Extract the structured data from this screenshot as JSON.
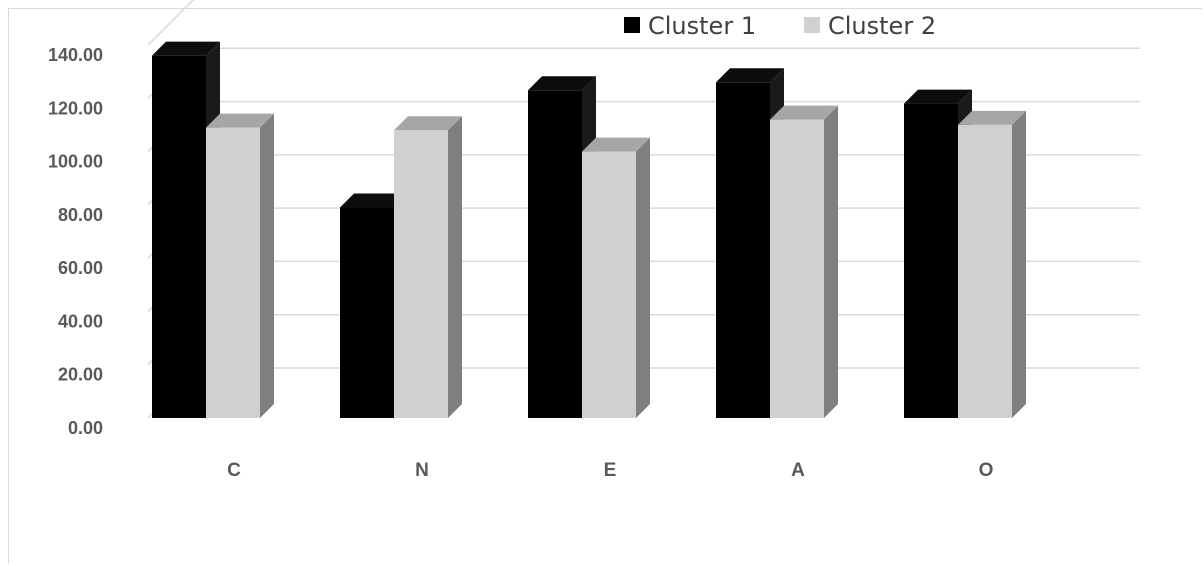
{
  "chart_data": {
    "type": "bar",
    "categories": [
      "C",
      "N",
      "E",
      "A",
      "O"
    ],
    "series": [
      {
        "name": "Cluster 1",
        "values": [
          136,
          79,
          123,
          126,
          118
        ],
        "color": "#000000",
        "side_color": "#1a1a1a",
        "top_color": "#0d0d0d"
      },
      {
        "name": "Cluster 2",
        "values": [
          109,
          108,
          100,
          112,
          110
        ],
        "color": "#d0cfd1",
        "side_color": "#7f7f7f",
        "top_color": "#a6a6a6"
      }
    ],
    "ylim": [
      0,
      140
    ],
    "yticks": [
      "0.00",
      "20.00",
      "40.00",
      "60.00",
      "80.00",
      "100.00",
      "120.00",
      "140.00"
    ],
    "title": "",
    "xlabel": "",
    "ylabel": "",
    "grid": true,
    "legend_position": "top-right",
    "three_d": true
  }
}
